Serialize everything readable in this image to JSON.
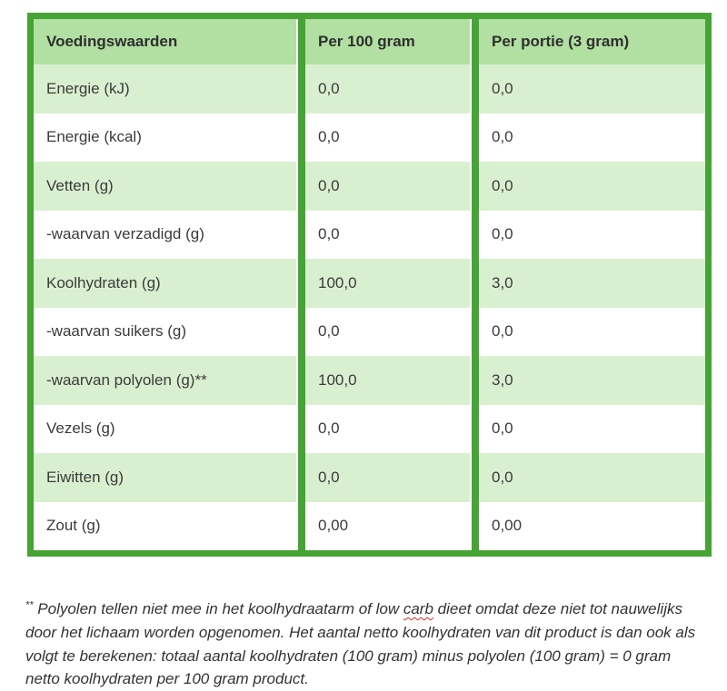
{
  "colors": {
    "border_green": "#46a335",
    "header_bg": "#b2dfa2",
    "row_alt_bg": "#d9f0d0",
    "text": "#3b3b3b",
    "spellcheck_red": "#e02b20"
  },
  "table": {
    "headers": [
      "Voedingswaarden",
      "Per 100 gram",
      "Per portie (3 gram)"
    ],
    "rows": [
      {
        "label": "Energie (kJ)",
        "per100": "0,0",
        "portion": "0,0"
      },
      {
        "label": "Energie (kcal)",
        "per100": "0,0",
        "portion": "0,0"
      },
      {
        "label": "Vetten (g)",
        "per100": "0,0",
        "portion": "0,0"
      },
      {
        "label": "-waarvan verzadigd (g)",
        "per100": "0,0",
        "portion": "0,0"
      },
      {
        "label": "Koolhydraten (g)",
        "per100": "100,0",
        "portion": "3,0"
      },
      {
        "label": "-waarvan suikers (g)",
        "per100": "0,0",
        "portion": "0,0"
      },
      {
        "label": "-waarvan polyolen (g)**",
        "per100": "100,0",
        "portion": "3,0"
      },
      {
        "label": "Vezels (g)",
        "per100": "0,0",
        "portion": "0,0"
      },
      {
        "label": "Eiwitten (g)",
        "per100": "0,0",
        "portion": "0,0"
      },
      {
        "label": "Zout (g)",
        "per100": "0,00",
        "portion": "0,00"
      }
    ]
  },
  "footnote": {
    "marker": "**",
    "before": " Polyolen tellen niet mee in het koolhydraatarm of low ",
    "misspelled_word": "carb",
    "after": " dieet omdat deze niet tot nauwelijks door het lichaam worden opgenomen. Het aantal netto koolhydraten van dit product is dan ook als volgt te berekenen: totaal aantal koolhydraten (100 gram) minus polyolen (100 gram) = 0 gram netto koolhydraten per 100 gram product."
  }
}
